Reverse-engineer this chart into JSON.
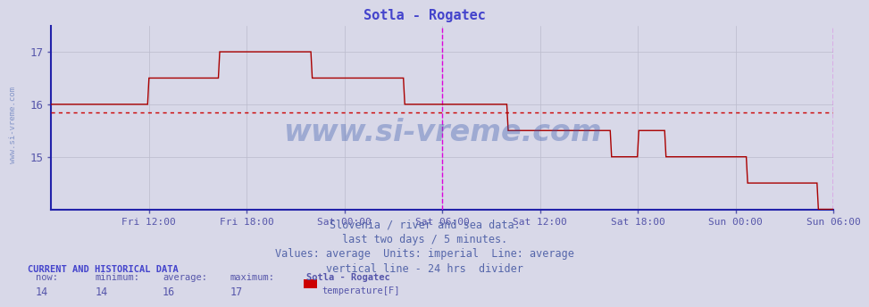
{
  "title": "Sotla - Rogatec",
  "title_color": "#4444cc",
  "bg_color": "#d8d8e8",
  "plot_bg_color": "#d8d8e8",
  "line_color": "#aa0000",
  "average_line_color": "#cc0000",
  "average_value": 15.85,
  "vline_color": "#dd00dd",
  "xlabel_color": "#5555aa",
  "ylabel_color": "#5555aa",
  "grid_color": "#bbbbcc",
  "grid_color2": "#ccccdd",
  "axis_color": "#2222aa",
  "watermark_text": "www.si-vreme.com",
  "watermark_color": "#3355aa",
  "watermark_alpha": 0.35,
  "left_watermark": "www.si-vreme.com",
  "footer_lines": [
    "Slovenia / river and sea data.",
    "last two days / 5 minutes.",
    "Values: average  Units: imperial  Line: average",
    "vertical line - 24 hrs  divider"
  ],
  "footer_color": "#5566aa",
  "footer_fontsize": 8.5,
  "current_label": "CURRENT AND HISTORICAL DATA",
  "stats_labels": [
    "now:",
    "minimum:",
    "average:",
    "maximum:"
  ],
  "stats_values": [
    "14",
    "14",
    "16",
    "17"
  ],
  "station_name": "Sotla - Rogatec",
  "legend_label": "temperature[F]",
  "legend_color": "#cc0000",
  "yticks": [
    15,
    16,
    17
  ],
  "ylim": [
    14.0,
    17.5
  ],
  "xtick_labels": [
    "Fri 12:00",
    "Fri 18:00",
    "Sat 00:00",
    "Sat 06:00",
    "Sat 12:00",
    "Sat 18:00",
    "Sun 00:00",
    "Sun 06:00"
  ],
  "xtick_positions": [
    0.125,
    0.25,
    0.375,
    0.5,
    0.625,
    0.75,
    0.875,
    1.0
  ],
  "num_points": 576,
  "vline_x": 0.5,
  "right_vline_x": 1.0
}
